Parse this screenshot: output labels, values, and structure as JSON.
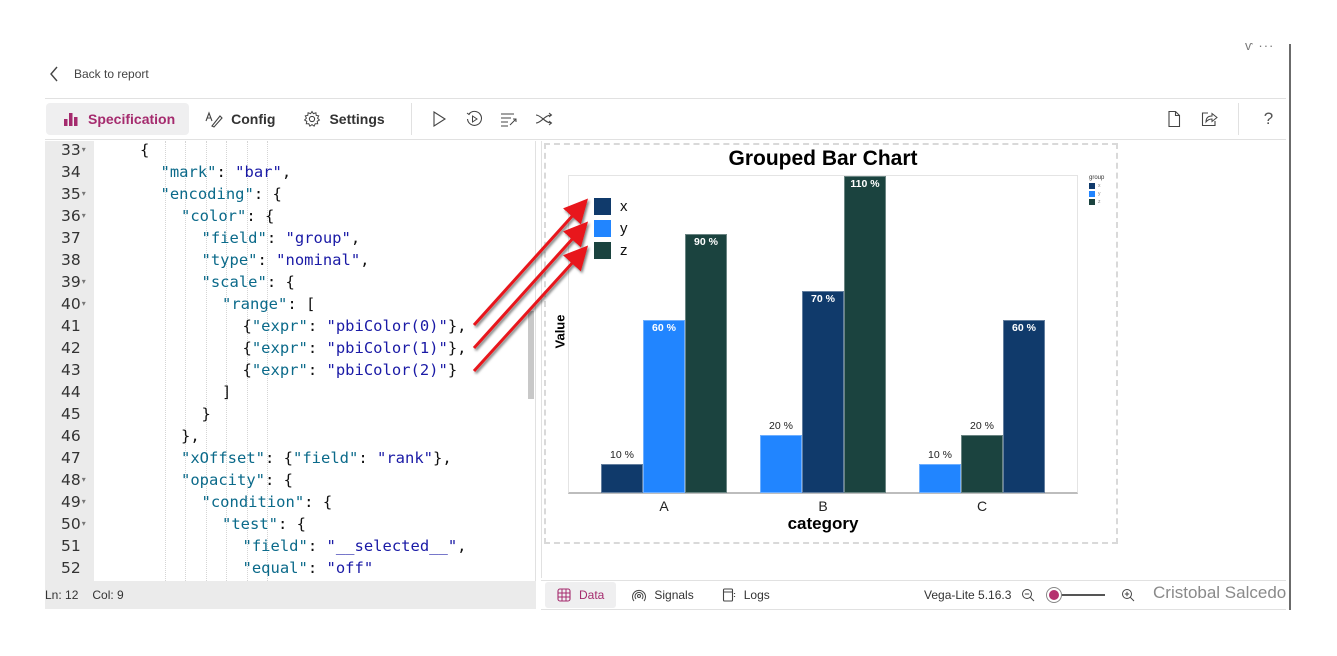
{
  "window": {
    "controls_text": "ⱱ  ···"
  },
  "nav": {
    "back_label": "Back to report"
  },
  "toolbar": {
    "tabs": [
      {
        "label": "Specification",
        "icon": "bar-chart-icon",
        "active": true
      },
      {
        "label": "Config",
        "icon": "pen-icon",
        "active": false
      },
      {
        "label": "Settings",
        "icon": "gear-icon",
        "active": false
      }
    ],
    "actions": [
      "play-icon",
      "replay-icon",
      "format-icon",
      "shuffle-icon"
    ],
    "right_actions": [
      "new-file-icon",
      "share-icon",
      "help-icon"
    ],
    "help_label": "?"
  },
  "editor": {
    "lines": [
      {
        "n": "33",
        "fold": true,
        "indent": 2,
        "tokens": [
          [
            "p",
            "{"
          ]
        ]
      },
      {
        "n": "34",
        "fold": false,
        "indent": 3,
        "tokens": [
          [
            "k",
            "\"mark\""
          ],
          [
            "p",
            ": "
          ],
          [
            "s",
            "\"bar\""
          ],
          [
            "p",
            ","
          ]
        ]
      },
      {
        "n": "35",
        "fold": true,
        "indent": 3,
        "tokens": [
          [
            "k",
            "\"encoding\""
          ],
          [
            "p",
            ": {"
          ]
        ]
      },
      {
        "n": "36",
        "fold": true,
        "indent": 4,
        "tokens": [
          [
            "k",
            "\"color\""
          ],
          [
            "p",
            ": {"
          ]
        ]
      },
      {
        "n": "37",
        "fold": false,
        "indent": 5,
        "tokens": [
          [
            "k",
            "\"field\""
          ],
          [
            "p",
            ": "
          ],
          [
            "s",
            "\"group\""
          ],
          [
            "p",
            ","
          ]
        ]
      },
      {
        "n": "38",
        "fold": false,
        "indent": 5,
        "tokens": [
          [
            "k",
            "\"type\""
          ],
          [
            "p",
            ": "
          ],
          [
            "s",
            "\"nominal\""
          ],
          [
            "p",
            ","
          ]
        ]
      },
      {
        "n": "39",
        "fold": true,
        "indent": 5,
        "tokens": [
          [
            "k",
            "\"scale\""
          ],
          [
            "p",
            ": {"
          ]
        ]
      },
      {
        "n": "40",
        "fold": true,
        "indent": 6,
        "tokens": [
          [
            "k",
            "\"range\""
          ],
          [
            "p",
            ": ["
          ]
        ]
      },
      {
        "n": "41",
        "fold": false,
        "indent": 7,
        "tokens": [
          [
            "p",
            "{"
          ],
          [
            "k",
            "\"expr\""
          ],
          [
            "p",
            ": "
          ],
          [
            "s",
            "\"pbiColor(0)\""
          ],
          [
            "p",
            "},"
          ]
        ]
      },
      {
        "n": "42",
        "fold": false,
        "indent": 7,
        "tokens": [
          [
            "p",
            "{"
          ],
          [
            "k",
            "\"expr\""
          ],
          [
            "p",
            ": "
          ],
          [
            "s",
            "\"pbiColor(1)\""
          ],
          [
            "p",
            "},"
          ]
        ]
      },
      {
        "n": "43",
        "fold": false,
        "indent": 7,
        "tokens": [
          [
            "p",
            "{"
          ],
          [
            "k",
            "\"expr\""
          ],
          [
            "p",
            ": "
          ],
          [
            "s",
            "\"pbiColor(2)\""
          ],
          [
            "p",
            "}"
          ]
        ]
      },
      {
        "n": "44",
        "fold": false,
        "indent": 6,
        "tokens": [
          [
            "p",
            "]"
          ]
        ]
      },
      {
        "n": "45",
        "fold": false,
        "indent": 5,
        "tokens": [
          [
            "p",
            "}"
          ]
        ]
      },
      {
        "n": "46",
        "fold": false,
        "indent": 4,
        "tokens": [
          [
            "p",
            "},"
          ]
        ]
      },
      {
        "n": "47",
        "fold": false,
        "indent": 4,
        "tokens": [
          [
            "k",
            "\"xOffset\""
          ],
          [
            "p",
            ": {"
          ],
          [
            "k",
            "\"field\""
          ],
          [
            "p",
            ": "
          ],
          [
            "s",
            "\"rank\""
          ],
          [
            "p",
            "},"
          ]
        ]
      },
      {
        "n": "48",
        "fold": true,
        "indent": 4,
        "tokens": [
          [
            "k",
            "\"opacity\""
          ],
          [
            "p",
            ": {"
          ]
        ]
      },
      {
        "n": "49",
        "fold": true,
        "indent": 5,
        "tokens": [
          [
            "k",
            "\"condition\""
          ],
          [
            "p",
            ": {"
          ]
        ]
      },
      {
        "n": "50",
        "fold": true,
        "indent": 6,
        "tokens": [
          [
            "k",
            "\"test\""
          ],
          [
            "p",
            ": {"
          ]
        ]
      },
      {
        "n": "51",
        "fold": false,
        "indent": 7,
        "tokens": [
          [
            "k",
            "\"field\""
          ],
          [
            "p",
            ": "
          ],
          [
            "s",
            "\"__selected__\""
          ],
          [
            "p",
            ","
          ]
        ]
      },
      {
        "n": "52",
        "fold": false,
        "indent": 7,
        "tokens": [
          [
            "k",
            "\"equal\""
          ],
          [
            "p",
            ": "
          ],
          [
            "s",
            "\"off\""
          ]
        ]
      }
    ]
  },
  "status": {
    "ln": "Ln: 12",
    "col": "Col: 9"
  },
  "bottom_bar": {
    "tabs": [
      {
        "label": "Data",
        "icon": "table-icon",
        "active": true
      },
      {
        "label": "Signals",
        "icon": "signal-icon",
        "active": false
      },
      {
        "label": "Logs",
        "icon": "logs-icon",
        "active": false
      }
    ],
    "version": "Vega-Lite 5.16.3"
  },
  "watermark": "Cristobal Salcedo",
  "colors": {
    "x": "#103a6b",
    "y": "#2185ff",
    "z": "#1b433f",
    "accent": "#b5316f"
  },
  "chart_data": {
    "type": "bar",
    "title": "Grouped Bar Chart",
    "xlabel": "category",
    "ylabel": "Value",
    "categories": [
      "A",
      "B",
      "C"
    ],
    "groups_legend_title": "group",
    "legend": [
      "x",
      "y",
      "z"
    ],
    "ylim": [
      0,
      110
    ],
    "grid": false,
    "bars": [
      {
        "category": "A",
        "group": "x",
        "value": 10,
        "label": "10 %"
      },
      {
        "category": "A",
        "group": "y",
        "value": 60,
        "label": "60 %"
      },
      {
        "category": "A",
        "group": "z",
        "value": 90,
        "label": "90 %"
      },
      {
        "category": "B",
        "group": "y",
        "value": 20,
        "label": "20 %"
      },
      {
        "category": "B",
        "group": "x",
        "value": 70,
        "label": "70 %"
      },
      {
        "category": "B",
        "group": "z",
        "value": 110,
        "label": "110 %"
      },
      {
        "category": "C",
        "group": "y",
        "value": 10,
        "label": "10 %"
      },
      {
        "category": "C",
        "group": "z",
        "value": 20,
        "label": "20 %"
      },
      {
        "category": "C",
        "group": "x",
        "value": 60,
        "label": "60 %"
      }
    ],
    "series": [
      {
        "name": "x",
        "values": [
          10,
          70,
          60
        ]
      },
      {
        "name": "y",
        "values": [
          60,
          20,
          10
        ]
      },
      {
        "name": "z",
        "values": [
          90,
          110,
          20
        ]
      }
    ]
  }
}
